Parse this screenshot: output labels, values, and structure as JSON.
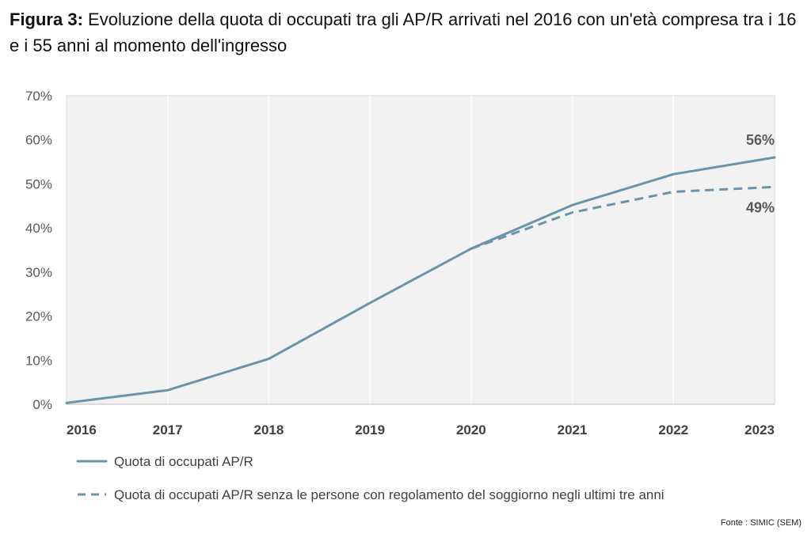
{
  "figure": {
    "label": "Figura 3:",
    "title": "Evoluzione della quota di occupati tra gli AP/R arrivati nel 2016 con un'età compresa tra i 16 e i 55 anni al momento dell'ingresso",
    "source": "Fonte : SIMIC (SEM)"
  },
  "colors": {
    "series": "#6A94AB",
    "plot_background": "#F2F2F2",
    "gridline": "#FFFFFF"
  },
  "chart_data": {
    "type": "line",
    "title": "Evoluzione della quota di occupati tra gli AP/R arrivati nel 2016 con un'età compresa tra i 16 e i 55 anni al momento dell'ingresso",
    "x": [
      2016,
      2017,
      2018,
      2019,
      2020,
      2021,
      2022,
      2023
    ],
    "x_tick_labels": [
      "2016",
      "2017",
      "2018",
      "2019",
      "2020",
      "2021",
      "2022",
      "2023"
    ],
    "y_tick_labels": [
      "0%",
      "10%",
      "20%",
      "30%",
      "40%",
      "50%",
      "60%",
      "70%"
    ],
    "ylim": [
      0,
      70
    ],
    "y_ticks": [
      0,
      10,
      20,
      30,
      40,
      50,
      60,
      70
    ],
    "y_unit": "%",
    "grid": "vertical",
    "legend_position": "bottom-left",
    "series": [
      {
        "name": "Quota di occupati AP/R",
        "style": "solid",
        "x": [
          2016,
          2017,
          2018,
          2019,
          2020,
          2021,
          2022,
          2023
        ],
        "values": [
          0.3,
          3.2,
          10.3,
          23.0,
          35.3,
          45.2,
          52.2,
          56.0
        ],
        "end_label": "56%"
      },
      {
        "name": "Quota di occupati AP/R senza le persone con regolamento del soggiorno negli ultimi tre anni",
        "style": "dashed",
        "x": [
          2020,
          2021,
          2022,
          2023
        ],
        "values": [
          35.3,
          43.5,
          48.2,
          49.3
        ],
        "end_label": "49%"
      }
    ]
  }
}
